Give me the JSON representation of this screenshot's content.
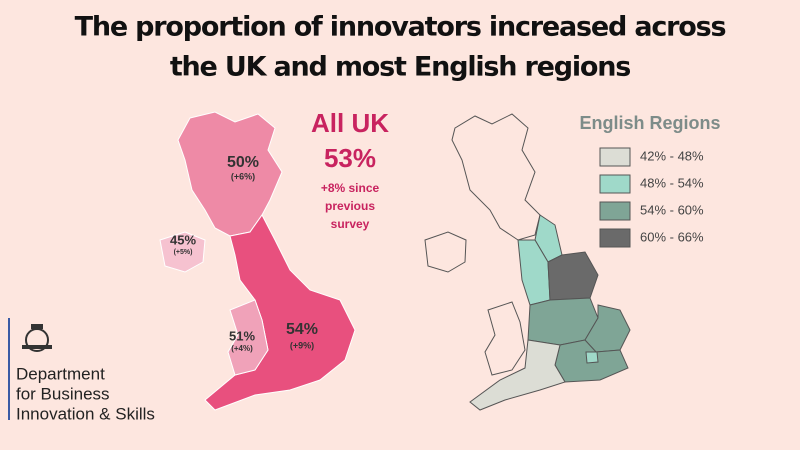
{
  "title_lines": [
    "The proportion of innovators increased across",
    "the UK and most English regions"
  ],
  "uk_map": {
    "headline": "All UK",
    "value": "53%",
    "change_lines": [
      "+8% since",
      "previous",
      "survey"
    ],
    "nations": [
      {
        "value": "50%",
        "change": "(+6%)"
      },
      {
        "value": "45%",
        "change": "(+5%)"
      },
      {
        "value": "51%",
        "change": "(+4%)"
      },
      {
        "value": "54%",
        "change": "(+9%)"
      }
    ]
  },
  "regions_map": {
    "title": "English Regions",
    "legend": [
      {
        "label": "42% - 48%",
        "color": "#dcddd5"
      },
      {
        "label": "48% - 54%",
        "color": "#9fd9c9"
      },
      {
        "label": "54% - 60%",
        "color": "#7fa596"
      },
      {
        "label": "60% - 66%",
        "color": "#6a6a6a"
      }
    ]
  },
  "logo": {
    "lines": [
      "Department",
      "for Business",
      "Innovation & Skills"
    ]
  }
}
